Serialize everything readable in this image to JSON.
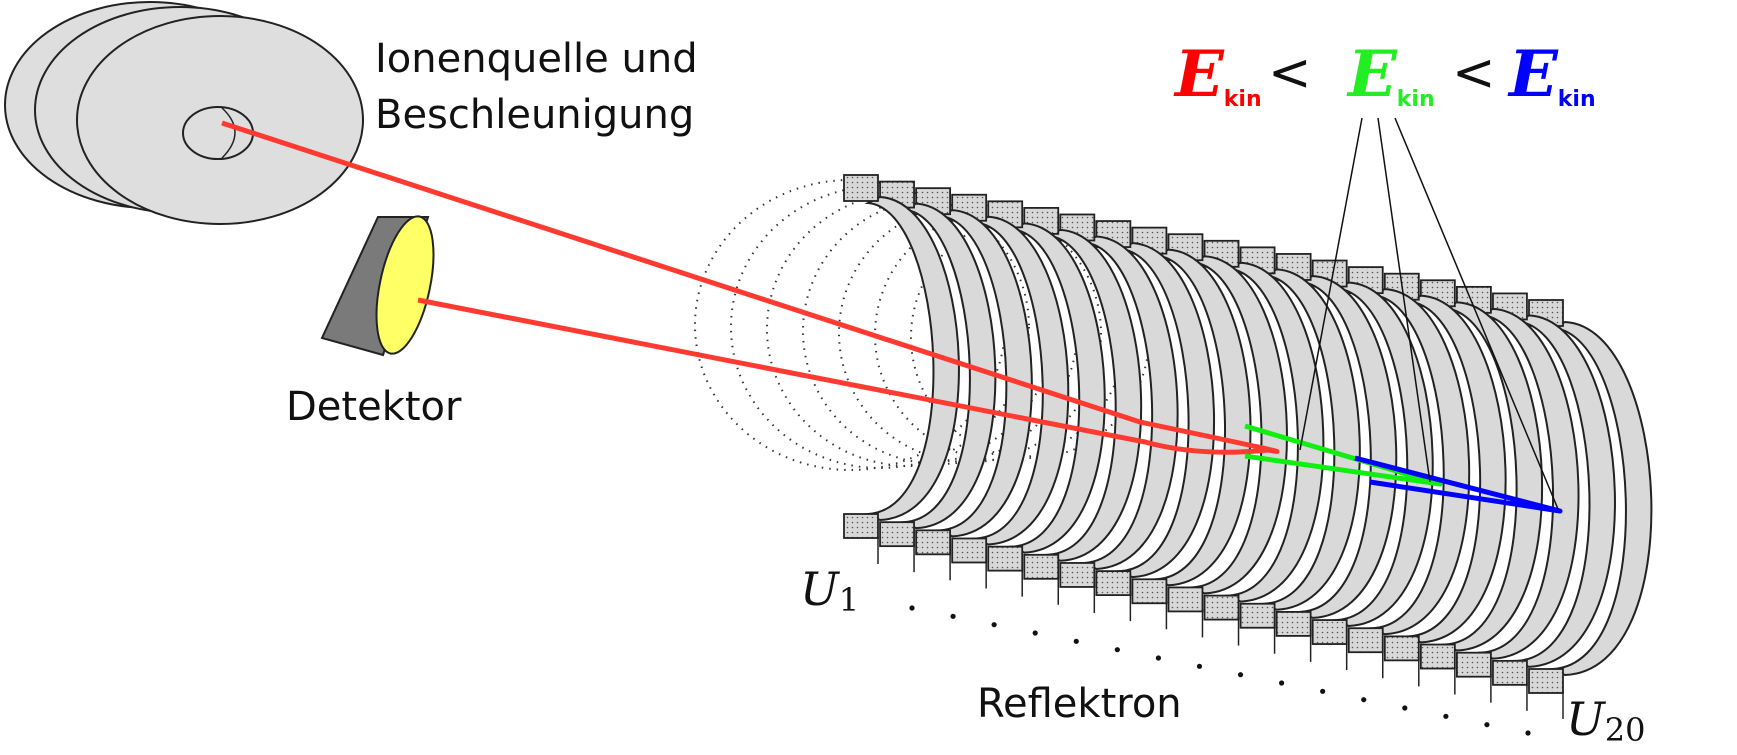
{
  "labels": {
    "source_line1": "Ionenquelle und",
    "source_line2": "Beschleunigung",
    "detector": "Detektor",
    "reflectron": "Reflektron",
    "u_first_main": "U",
    "u_first_sub": "1",
    "u_last_main": "U",
    "u_last_sub": "20"
  },
  "energy_legend": {
    "symbol": "E",
    "subscript": "kin",
    "operator": "<",
    "colors": [
      "#ff0000",
      "#22ee22",
      "#0000ff"
    ]
  },
  "colors": {
    "ion_path_red": "#ff3a30",
    "ion_path_green": "#11ee11",
    "ion_path_blue": "#0000ff",
    "detector_face": "#ffff66",
    "detector_body": "#7a7a7a",
    "electrode_fill": "#d9d9d9"
  },
  "reflectron": {
    "electrode_count": 20
  }
}
